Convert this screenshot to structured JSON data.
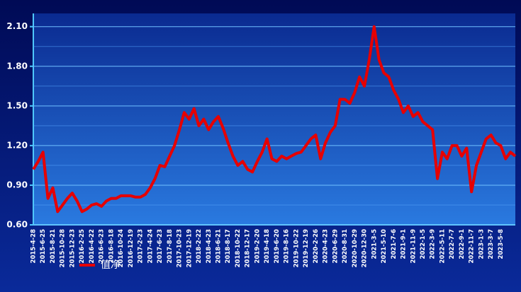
{
  "chart_data": {
    "type": "line",
    "categories": [
      "2015-4-28",
      null,
      "2015-6-25",
      null,
      "2015-8-21",
      null,
      "2015-10-28",
      null,
      "2015-12-23",
      null,
      "2016-2-25",
      null,
      "2016-4-22",
      null,
      "2016-6-23",
      null,
      "2016-8-18",
      null,
      "2016-10-24",
      null,
      "2016-12-19",
      null,
      "2017-2-23",
      null,
      "2017-4-24",
      null,
      "2017-6-23",
      null,
      "2017-8-18",
      null,
      "2017-10-23",
      null,
      "2017-12-19",
      null,
      "2018-2-22",
      null,
      "2018-4-23",
      null,
      "2018-6-21",
      null,
      "2018-8-17",
      null,
      "2018-10-22",
      null,
      "2018-12-17",
      null,
      "2019-2-20",
      null,
      "2019-4-18",
      null,
      "2019-6-20",
      null,
      "2019-8-16",
      null,
      "2019-10-22",
      null,
      "2019-12-19",
      null,
      "2020-2-26",
      null,
      "2020-4-23",
      null,
      "2020-6-29",
      null,
      "2020-8-31",
      null,
      "2020-10-29",
      null,
      "2020-12-30",
      null,
      "2021-3-5",
      null,
      "2021-5-10",
      null,
      "2021-7-6",
      null,
      "2021-9-1",
      null,
      "2021-11-9",
      null,
      "2022-1-5",
      null,
      "2022-3-9",
      null,
      "2022-5-11",
      null,
      "2022-7-7",
      null,
      "2022-9-1",
      null,
      "2022-11-7",
      null,
      "2023-1-3",
      null,
      "2023-3-7",
      null,
      "2023-5-8",
      null,
      null,
      null
    ],
    "series": [
      {
        "name": "值净",
        "color": "#e60000",
        "values": [
          1.02,
          1.08,
          1.15,
          0.8,
          0.88,
          0.7,
          0.75,
          0.8,
          0.84,
          0.78,
          0.7,
          0.72,
          0.75,
          0.76,
          0.74,
          0.78,
          0.8,
          0.8,
          0.82,
          0.82,
          0.82,
          0.81,
          0.81,
          0.83,
          0.88,
          0.95,
          1.05,
          1.04,
          1.12,
          1.2,
          1.32,
          1.45,
          1.4,
          1.48,
          1.35,
          1.4,
          1.32,
          1.38,
          1.42,
          1.33,
          1.22,
          1.12,
          1.05,
          1.08,
          1.02,
          1.0,
          1.08,
          1.15,
          1.25,
          1.1,
          1.08,
          1.12,
          1.1,
          1.12,
          1.14,
          1.15,
          1.2,
          1.25,
          1.28,
          1.1,
          1.22,
          1.3,
          1.35,
          1.55,
          1.55,
          1.52,
          1.6,
          1.72,
          1.65,
          1.85,
          2.1,
          1.85,
          1.75,
          1.72,
          1.62,
          1.55,
          1.45,
          1.5,
          1.42,
          1.45,
          1.38,
          1.35,
          1.32,
          0.95,
          1.15,
          1.1,
          1.2,
          1.2,
          1.12,
          1.18,
          0.85,
          1.05,
          1.15,
          1.25,
          1.28,
          1.22,
          1.2,
          1.1,
          1.15,
          1.12
        ]
      }
    ],
    "ylim": [
      0.6,
      2.2
    ],
    "yticks": [
      {
        "value": 0.6,
        "label": "0.60"
      },
      {
        "value": 0.9,
        "label": "0.90"
      },
      {
        "value": 1.2,
        "label": "1.20"
      },
      {
        "value": 1.5,
        "label": "1.50"
      },
      {
        "value": 1.8,
        "label": "1.80"
      },
      {
        "value": 2.1,
        "label": "2.10"
      }
    ],
    "yminor": [
      0.75,
      1.05,
      1.35,
      1.65,
      1.95
    ],
    "grid": true,
    "legend": "bottom-left"
  }
}
